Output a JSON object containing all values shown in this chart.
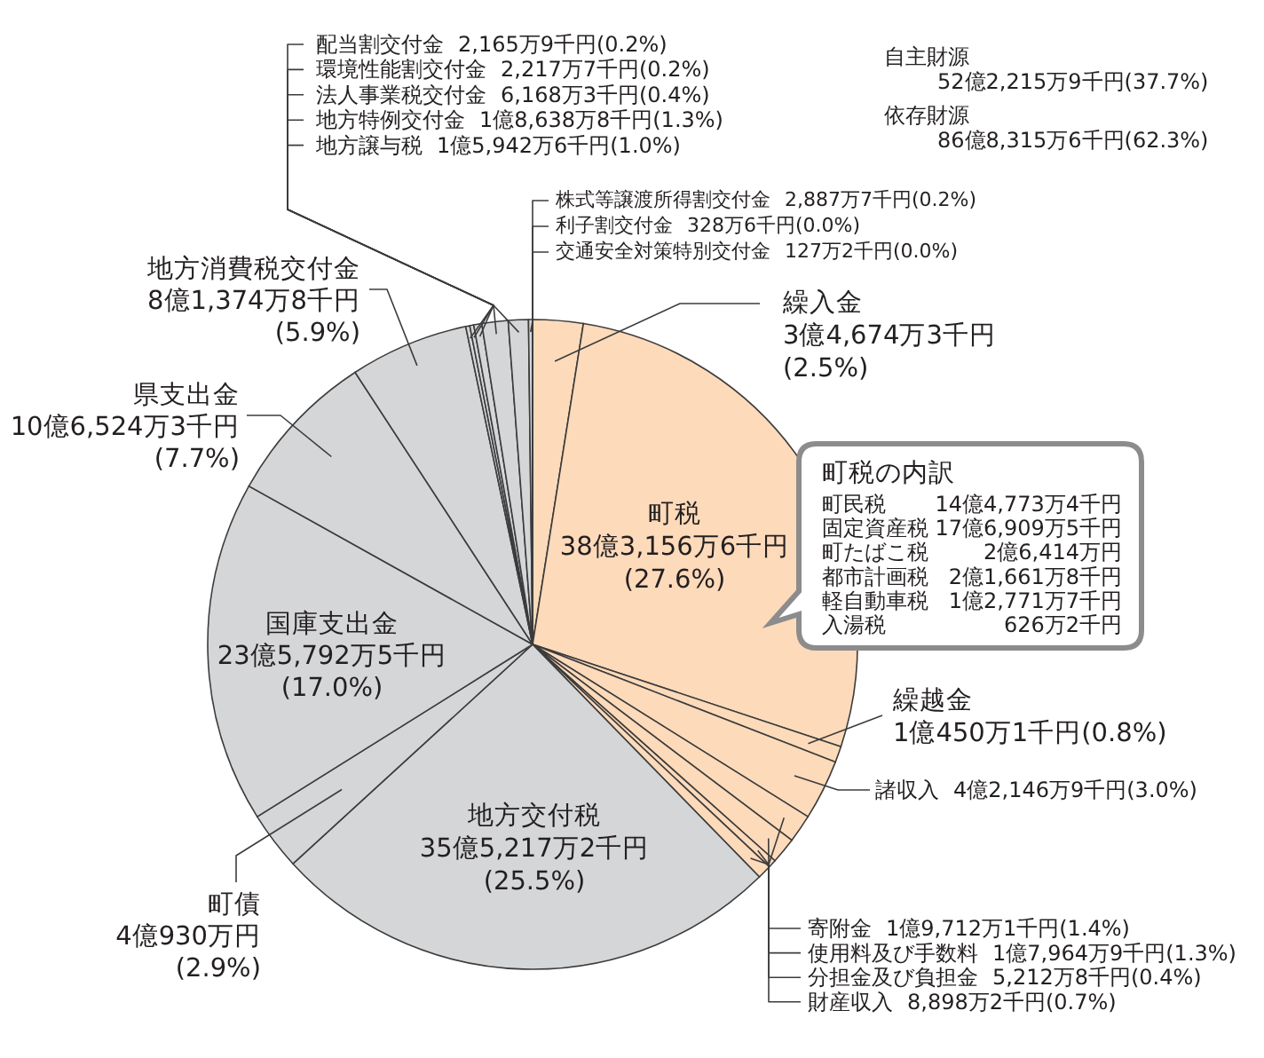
{
  "chart_data": {
    "type": "pie",
    "categories": [
      "繰入金",
      "町税",
      "繰越金",
      "諸収入",
      "寄附金",
      "使用料及び手数料",
      "分担金及び負担金",
      "財産収入",
      "地方交付税",
      "町債",
      "国庫支出金",
      "県支出金",
      "地方消費税交付金",
      "配当割交付金",
      "環境性能割交付金",
      "法人事業税交付金",
      "地方特例交付金",
      "地方譲与税",
      "株式等譲渡所得割交付金",
      "利子割交付金",
      "交通安全対策特別交付金"
    ],
    "values": [
      2.5,
      27.6,
      0.8,
      3.0,
      1.4,
      1.3,
      0.4,
      0.7,
      25.5,
      2.9,
      17.0,
      7.7,
      5.9,
      0.2,
      0.2,
      0.4,
      1.3,
      1.0,
      0.2,
      0.0,
      0.0
    ],
    "colors": [
      "#fddaba",
      "#fddaba",
      "#fddaba",
      "#fddaba",
      "#fddaba",
      "#fddaba",
      "#fddaba",
      "#fddaba",
      "#d5d6d8",
      "#d5d6d8",
      "#d5d6d8",
      "#d5d6d8",
      "#d5d6d8",
      "#d5d6d8",
      "#d5d6d8",
      "#d5d6d8",
      "#d5d6d8",
      "#d5d6d8",
      "#d5d6d8",
      "#d5d6d8",
      "#d5d6d8"
    ],
    "value_labels": [
      "3億4,674万3千円\n(2.5%)",
      "38億3,156万6千円\n(27.6%)",
      "1億450万1千円(0.8%)",
      "4億2,146万9千円(3.0%)",
      "1億9,712万1千円(1.4%)",
      "1億7,964万9千円(1.3%)",
      "5,212万8千円(0.4%)",
      "8,898万2千円(0.7%)",
      "35億5,217万2千円\n(25.5%)",
      "4億930万円\n(2.9%)",
      "23億5,792万5千円\n(17.0%)",
      "10億6,524万3千円\n(7.7%)",
      "8億1,374万8千円\n(5.9%)",
      "2,165万9千円(0.2%)",
      "2,217万7千円(0.2%)",
      "6,168万3千円(0.4%)",
      "1億8,638万8千円(1.3%)",
      "1億5,942万6千円(1.0%)",
      "2,887万7千円(0.2%)",
      "328万6千円(0.0%)",
      "127万2千円(0.0%)"
    ],
    "annotations": [
      "自主財源",
      "52億2,215万9千円(37.7%)",
      "依存財源",
      "86億8,315万6千円(62.3%)",
      "町税の内訳",
      "町民税",
      "14億4,773万4千円",
      "固定資産税",
      "17億6,909万5千円",
      "町たばこ税",
      "2億6,414万円",
      "都市計画税",
      "2億1,661万8千円",
      "軽自動車税",
      "1億2,771万7千円",
      "入湯税",
      "626万2千円"
    ]
  }
}
